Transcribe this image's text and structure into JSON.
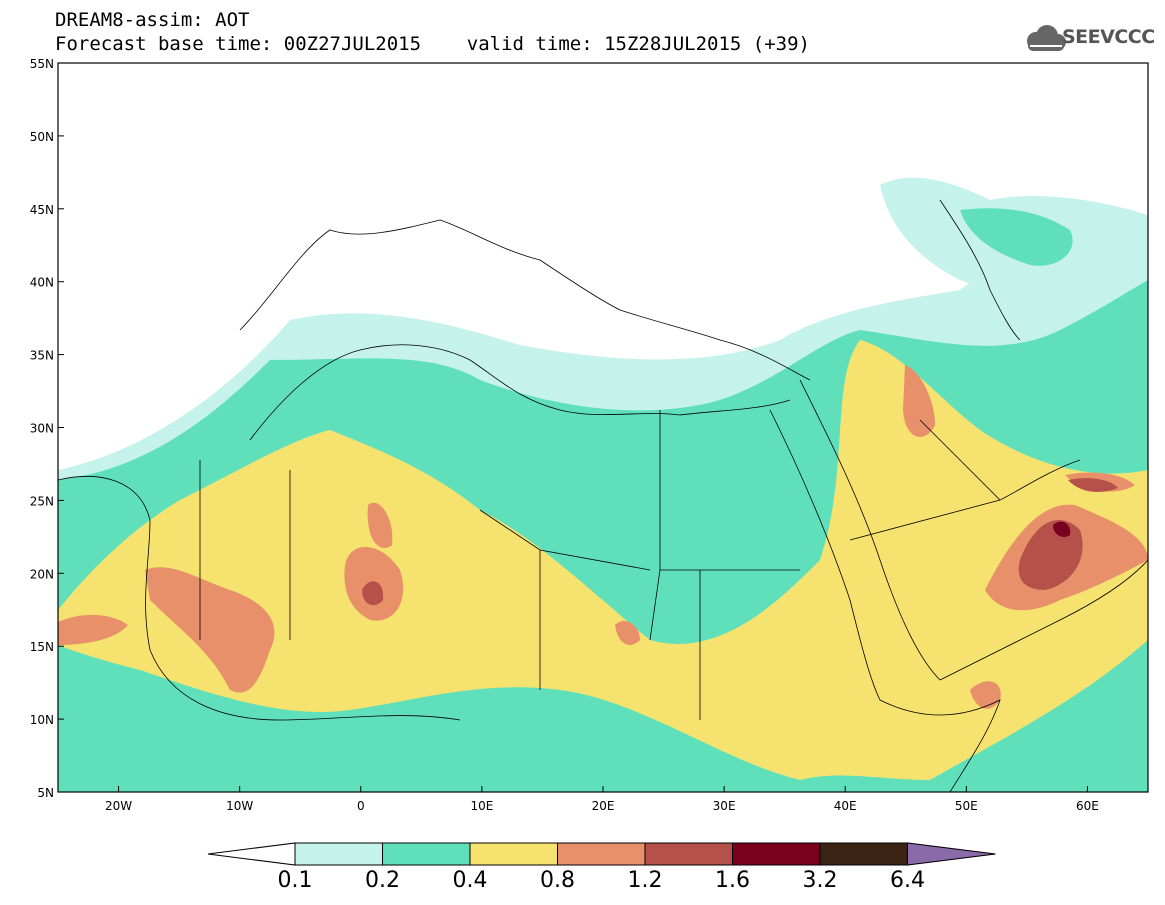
{
  "title": {
    "line1": "DREAM8-assim: AOT",
    "line2": "Forecast base time: 00Z27JUL2015    valid time: 15Z28JUL2015 (+39)"
  },
  "logo": {
    "text": "SEEVCCC",
    "icon": "cloud-icon"
  },
  "map": {
    "variable": "AOT",
    "lon_range": [
      -25,
      65
    ],
    "lat_range": [
      5,
      55
    ],
    "lat_ticks": [
      "5N",
      "10N",
      "15N",
      "20N",
      "25N",
      "30N",
      "35N",
      "40N",
      "45N",
      "50N",
      "55N"
    ],
    "lon_ticks": [
      "20W",
      "10W",
      "0",
      "10E",
      "20E",
      "30E",
      "40E",
      "50E",
      "60E"
    ]
  },
  "colorbar": {
    "labels": [
      "0.1",
      "0.2",
      "0.4",
      "0.8",
      "1.2",
      "1.6",
      "3.2",
      "6.4"
    ],
    "colors": [
      "#c6f2ec",
      "#5fe0bb",
      "#f6e36f",
      "#e8906a",
      "#b5504a",
      "#7a0020",
      "#3b2314",
      "#8a6aa8"
    ],
    "under_color": "#ffffff"
  }
}
